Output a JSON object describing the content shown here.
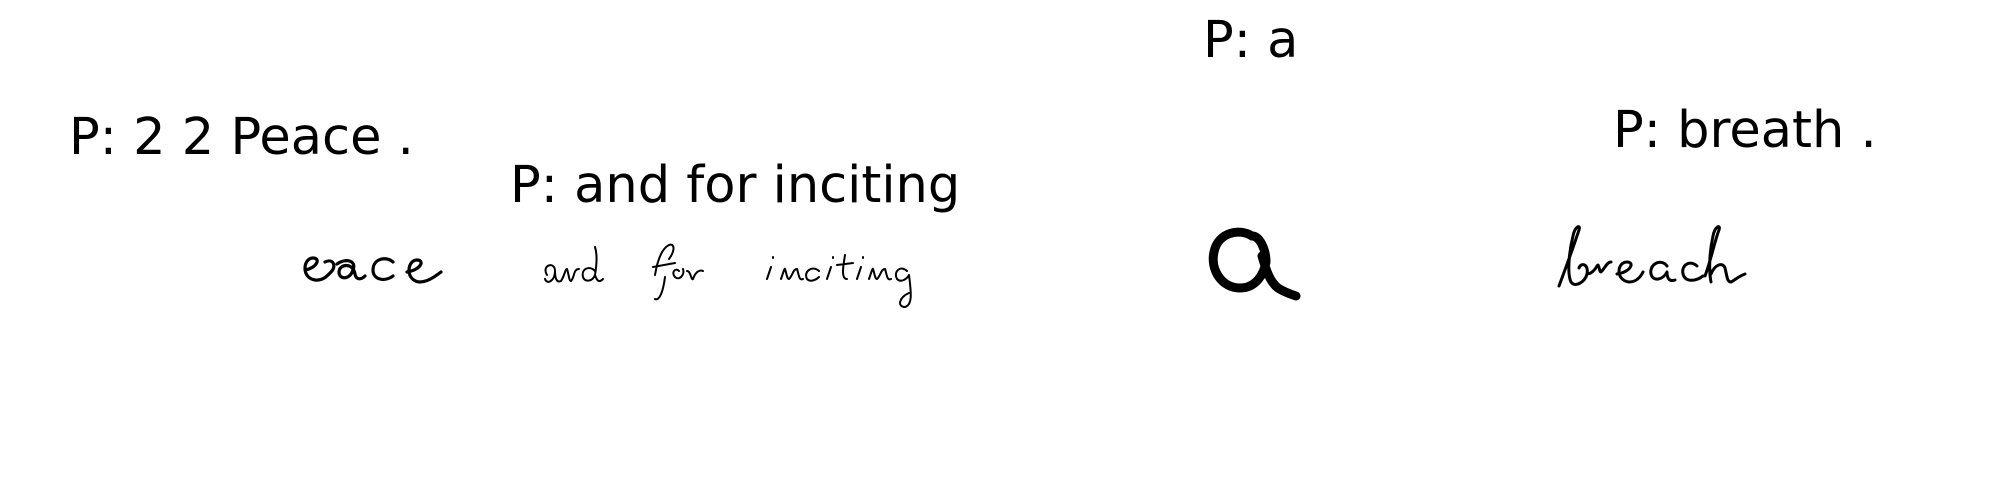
{
  "samples": [
    {
      "prediction": "P: 2 2 Peace .",
      "handwritten_word": "eace"
    },
    {
      "prediction": "P: and for inciting",
      "handwritten_word": "and for inciting"
    },
    {
      "prediction": "P: a",
      "handwritten_word": "a"
    },
    {
      "prediction": "P: breath .",
      "handwritten_word": "breach"
    }
  ]
}
